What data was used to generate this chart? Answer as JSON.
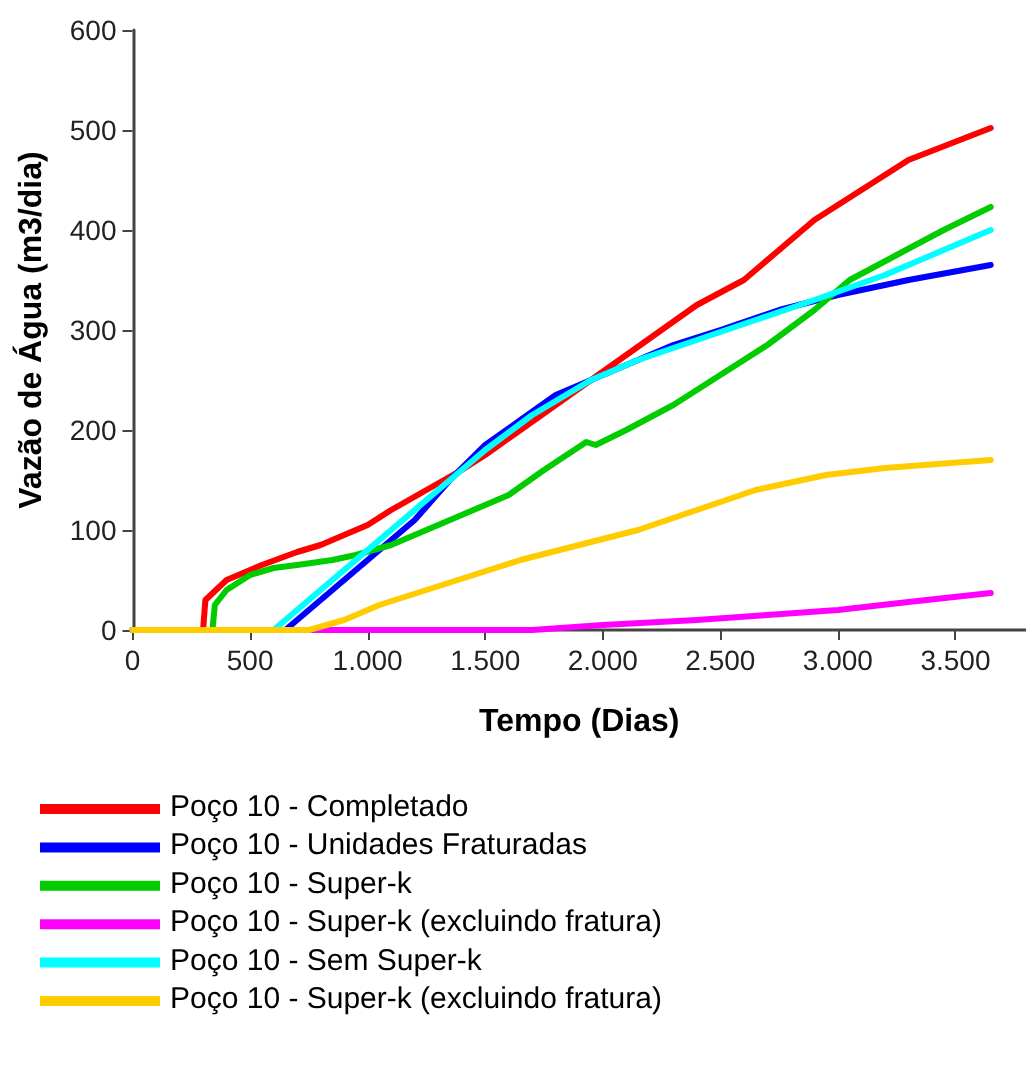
{
  "chart_data": {
    "type": "line",
    "xlabel": "Tempo (Dias)",
    "ylabel": "Vazão de Água (m3/dia)",
    "xlim": [
      0,
      3800
    ],
    "xticks": [
      {
        "value": 0,
        "label": "0"
      },
      {
        "value": 500,
        "label": "500"
      },
      {
        "value": 1000,
        "label": "1.000"
      },
      {
        "value": 1500,
        "label": "1.500"
      },
      {
        "value": 2000,
        "label": "2.000"
      },
      {
        "value": 2500,
        "label": "2.500"
      },
      {
        "value": 3000,
        "label": "3.000"
      },
      {
        "value": 3500,
        "label": "3.500"
      }
    ],
    "ylim": [
      0,
      600
    ],
    "yticks": [
      0,
      100,
      200,
      300,
      400,
      500,
      600
    ],
    "grid": false,
    "legend": "bottom",
    "marker": "none",
    "line_style": "solid",
    "series": [
      {
        "name": "Poço 10 - Completado",
        "color": "#ff0000",
        "x": [
          0,
          300,
          310,
          400,
          550,
          700,
          800,
          900,
          1000,
          1100,
          1250,
          1400,
          1500,
          1650,
          1800,
          1950,
          2100,
          2250,
          2400,
          2600,
          2750,
          2900,
          3100,
          3300,
          3650
        ],
        "values": [
          0,
          0,
          30,
          50,
          65,
          78,
          85,
          95,
          105,
          120,
          140,
          160,
          175,
          200,
          225,
          250,
          275,
          300,
          325,
          350,
          380,
          410,
          440,
          470,
          502
        ]
      },
      {
        "name": "Poço 10 - Unidades Fraturadas",
        "color": "#0000ff",
        "x": [
          0,
          650,
          750,
          900,
          1050,
          1200,
          1350,
          1500,
          1650,
          1800,
          2000,
          2150,
          2300,
          2500,
          2750,
          3000,
          3300,
          3650
        ],
        "values": [
          0,
          0,
          20,
          50,
          80,
          110,
          150,
          185,
          210,
          235,
          255,
          270,
          285,
          300,
          320,
          335,
          350,
          365
        ]
      },
      {
        "name": "Poço 10 - Super-k",
        "color": "#00cc00",
        "x": [
          0,
          340,
          350,
          400,
          500,
          600,
          700,
          850,
          950,
          1100,
          1250,
          1350,
          1500,
          1600,
          1750,
          1930,
          1970,
          2100,
          2300,
          2500,
          2700,
          2900,
          3050,
          3250,
          3450,
          3650
        ],
        "values": [
          0,
          0,
          25,
          40,
          55,
          62,
          65,
          70,
          75,
          85,
          100,
          110,
          125,
          135,
          160,
          188,
          185,
          200,
          225,
          255,
          285,
          320,
          350,
          375,
          400,
          423
        ]
      },
      {
        "name": "Poço 10 - Super-k (excluindo fratura)",
        "color": "#ff00ff",
        "x": [
          0,
          1700,
          2000,
          2400,
          2700,
          3000,
          3300,
          3650
        ],
        "values": [
          0,
          0,
          5,
          10,
          15,
          20,
          28,
          37
        ]
      },
      {
        "name": "Poço 10 - Sem Super-k",
        "color": "#00ffff",
        "x": [
          0,
          600,
          700,
          850,
          1000,
          1150,
          1300,
          1500,
          1700,
          1950,
          2150,
          2400,
          2650,
          2900,
          3200,
          3450,
          3650
        ],
        "values": [
          0,
          0,
          20,
          50,
          80,
          110,
          140,
          180,
          215,
          250,
          270,
          290,
          310,
          330,
          355,
          380,
          400
        ]
      },
      {
        "name": "Poço 10 - Super-k (excluindo fratura)",
        "color": "#ffcc00",
        "x": [
          0,
          750,
          900,
          1050,
          1250,
          1450,
          1650,
          1900,
          2150,
          2400,
          2650,
          2950,
          3200,
          3650
        ],
        "values": [
          0,
          0,
          10,
          25,
          40,
          55,
          70,
          85,
          100,
          120,
          140,
          155,
          162,
          170
        ]
      }
    ]
  }
}
